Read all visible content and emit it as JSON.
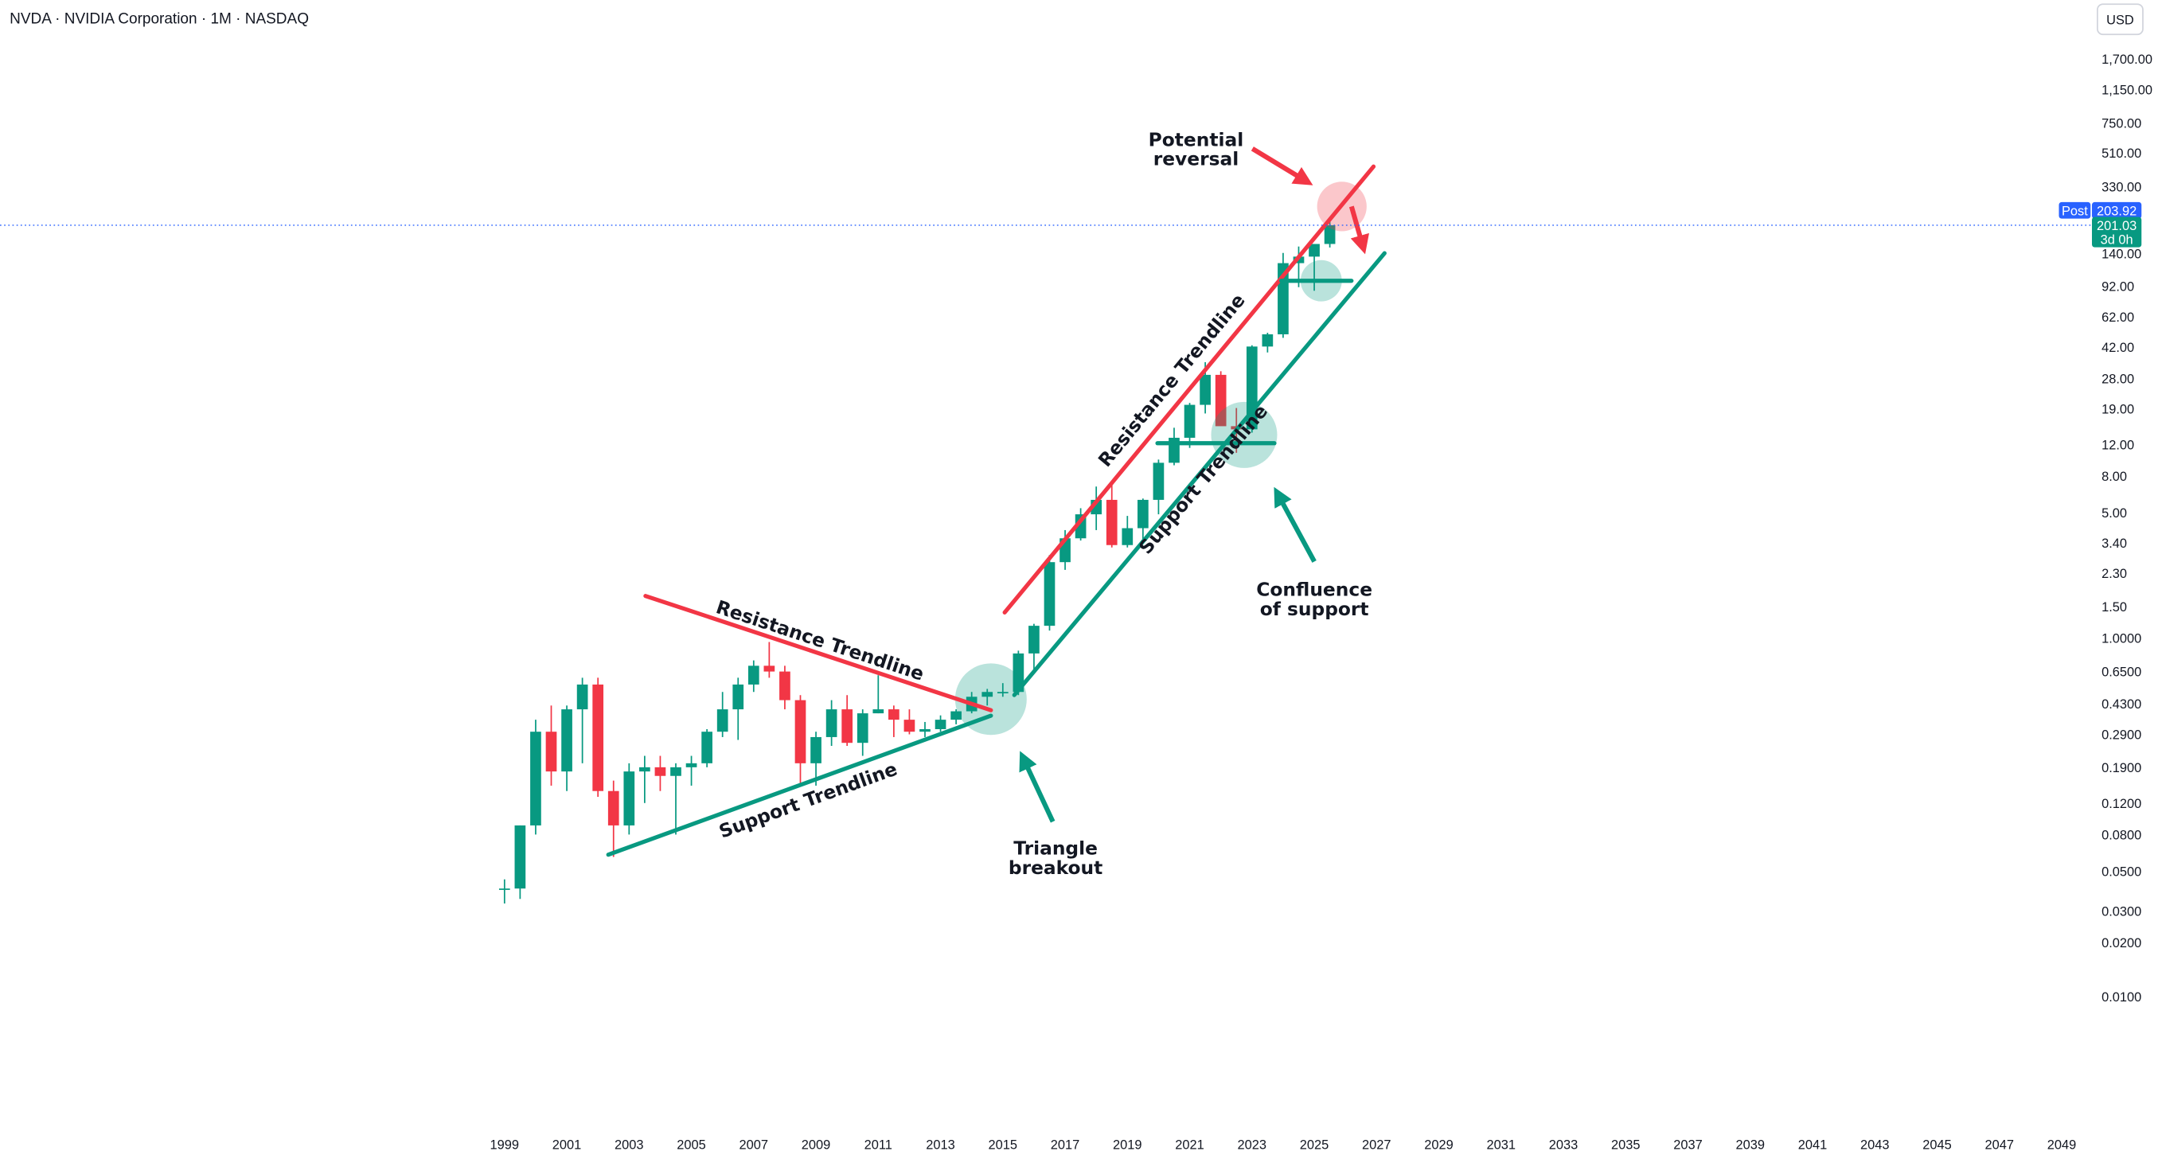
{
  "header": {
    "symbol": "NVDA · NVIDIA Corporation · 1M · NASDAQ",
    "currency": "USD"
  },
  "chart_data": {
    "type": "candlestick",
    "log_scale": true,
    "grid": false,
    "up_color": "#089981",
    "down_color": "#f23645",
    "x": [
      1999.0,
      1999.5,
      2000.0,
      2000.5,
      2001.0,
      2001.5,
      2002.0,
      2002.5,
      2003.0,
      2003.5,
      2004.0,
      2004.5,
      2005.0,
      2005.5,
      2006.0,
      2006.5,
      2007.0,
      2007.5,
      2008.0,
      2008.5,
      2009.0,
      2009.5,
      2010.0,
      2010.5,
      2011.0,
      2011.5,
      2012.0,
      2012.5,
      2013.0,
      2013.5,
      2014.0,
      2014.5,
      2015.0,
      2015.5,
      2016.0,
      2016.5,
      2017.0,
      2017.5,
      2018.0,
      2018.5,
      2019.0,
      2019.5,
      2020.0,
      2020.5,
      2021.0,
      2021.5,
      2022.0,
      2022.5,
      2023.0,
      2023.5,
      2024.0,
      2024.5,
      2025.0,
      2025.5
    ],
    "open": [
      0.04,
      0.04,
      0.09,
      0.3,
      0.18,
      0.4,
      0.55,
      0.14,
      0.09,
      0.18,
      0.19,
      0.17,
      0.19,
      0.2,
      0.3,
      0.4,
      0.55,
      0.7,
      0.65,
      0.45,
      0.2,
      0.28,
      0.4,
      0.26,
      0.38,
      0.4,
      0.35,
      0.3,
      0.31,
      0.35,
      0.39,
      0.47,
      0.5,
      0.5,
      0.82,
      1.17,
      2.65,
      3.6,
      4.9,
      5.9,
      3.3,
      4.1,
      5.9,
      9.5,
      13.1,
      20.0,
      29.4,
      15.2,
      14.6,
      42.3,
      49.5,
      123.5,
      134.3,
      158
    ],
    "high": [
      0.045,
      0.09,
      0.35,
      0.42,
      0.42,
      0.6,
      0.6,
      0.16,
      0.2,
      0.22,
      0.22,
      0.2,
      0.22,
      0.31,
      0.5,
      0.6,
      0.75,
      0.95,
      0.7,
      0.48,
      0.3,
      0.45,
      0.48,
      0.4,
      0.62,
      0.42,
      0.4,
      0.34,
      0.37,
      0.4,
      0.5,
      0.52,
      0.56,
      0.85,
      1.2,
      2.9,
      4.0,
      5.3,
      7.0,
      7.3,
      4.8,
      6.0,
      9.9,
      14.9,
      20.5,
      34.6,
      30.8,
      19.2,
      43,
      50.5,
      140.8,
      152.9,
      153.1,
      212
    ],
    "low": [
      0.033,
      0.035,
      0.08,
      0.15,
      0.14,
      0.2,
      0.13,
      0.06,
      0.08,
      0.12,
      0.14,
      0.08,
      0.15,
      0.19,
      0.28,
      0.27,
      0.5,
      0.6,
      0.4,
      0.15,
      0.15,
      0.25,
      0.25,
      0.22,
      0.38,
      0.28,
      0.29,
      0.28,
      0.3,
      0.33,
      0.38,
      0.42,
      0.47,
      0.48,
      0.65,
      1.1,
      2.4,
      3.5,
      4.0,
      3.2,
      3.2,
      3.5,
      4.9,
      9.2,
      11.5,
      17.9,
      15.6,
      10.8,
      14.0,
      39.2,
      47.3,
      90.7,
      86.6,
      151
    ],
    "close": [
      0.04,
      0.09,
      0.3,
      0.18,
      0.4,
      0.55,
      0.14,
      0.09,
      0.18,
      0.19,
      0.17,
      0.19,
      0.2,
      0.3,
      0.4,
      0.55,
      0.7,
      0.65,
      0.45,
      0.2,
      0.28,
      0.4,
      0.26,
      0.38,
      0.4,
      0.35,
      0.3,
      0.31,
      0.35,
      0.39,
      0.47,
      0.5,
      0.5,
      0.82,
      1.17,
      2.65,
      3.6,
      4.9,
      5.9,
      3.3,
      4.1,
      5.9,
      9.5,
      13.1,
      20.0,
      29.4,
      15.2,
      14.6,
      42.3,
      49.5,
      123.5,
      134.3,
      158,
      201.03
    ],
    "xlim": [
      1982.8,
      2049.75
    ],
    "ylim": [
      0.002,
      3630
    ],
    "xticks": [
      1999,
      2001,
      2003,
      2005,
      2007,
      2009,
      2011,
      2013,
      2015,
      2017,
      2019,
      2021,
      2023,
      2025,
      2027,
      2029,
      2031,
      2033,
      2035,
      2037,
      2039,
      2041,
      2043,
      2045,
      2047,
      2049
    ],
    "yticks": [
      {
        "value": 1700,
        "label": "1,700.00"
      },
      {
        "value": 1150,
        "label": "1,150.00"
      },
      {
        "value": 750,
        "label": "750.00"
      },
      {
        "value": 510,
        "label": "510.00"
      },
      {
        "value": 330,
        "label": "330.00"
      },
      {
        "value": 140,
        "label": "140.00"
      },
      {
        "value": 92,
        "label": "92.00"
      },
      {
        "value": 62,
        "label": "62.00"
      },
      {
        "value": 42,
        "label": "42.00"
      },
      {
        "value": 28,
        "label": "28.00"
      },
      {
        "value": 19,
        "label": "19.00"
      },
      {
        "value": 12,
        "label": "12.00"
      },
      {
        "value": 8,
        "label": "8.00"
      },
      {
        "value": 5,
        "label": "5.00"
      },
      {
        "value": 3.4,
        "label": "3.40"
      },
      {
        "value": 2.3,
        "label": "2.30"
      },
      {
        "value": 1.5,
        "label": "1.50"
      },
      {
        "value": 1,
        "label": "1.0000"
      },
      {
        "value": 0.65,
        "label": "0.6500"
      },
      {
        "value": 0.43,
        "label": "0.4300"
      },
      {
        "value": 0.29,
        "label": "0.2900"
      },
      {
        "value": 0.19,
        "label": "0.1900"
      },
      {
        "value": 0.12,
        "label": "0.1200"
      },
      {
        "value": 0.08,
        "label": "0.0800"
      },
      {
        "value": 0.05,
        "label": "0.0500"
      },
      {
        "value": 0.03,
        "label": "0.0300"
      },
      {
        "value": 0.02,
        "label": "0.0200"
      },
      {
        "value": 0.01,
        "label": "0.0100"
      }
    ],
    "last_price": {
      "value": 201.03,
      "countdown": "3d 0h"
    },
    "post_price": {
      "label": "Post",
      "value": 203.92
    },
    "annotations": [
      {
        "text": "Resistance Trendline"
      },
      {
        "text": "Support Trendline"
      },
      {
        "lines": [
          "Triangle",
          "breakout"
        ]
      },
      {
        "text": "Resistance Trendline"
      },
      {
        "text": "Support Trendline"
      },
      {
        "lines": [
          "Confluence",
          "of support"
        ]
      },
      {
        "lines": [
          "Potential",
          "reversal"
        ]
      }
    ]
  }
}
